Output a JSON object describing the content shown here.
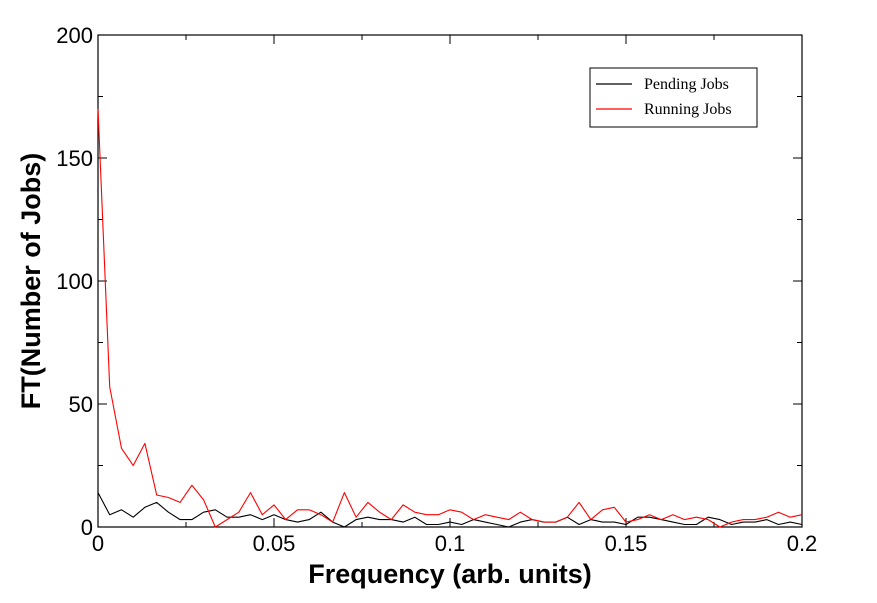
{
  "chart_data": {
    "type": "line",
    "title": "",
    "xlabel": "Frequency (arb. units)",
    "ylabel": "FT(Number of Jobs)",
    "xlim": [
      0,
      0.2
    ],
    "ylim": [
      0,
      200
    ],
    "x_ticks": [
      0,
      0.05,
      0.1,
      0.15,
      0.2
    ],
    "x_tick_labels": [
      "0",
      "0.05",
      "0.1",
      "0.15",
      "0.2"
    ],
    "y_ticks": [
      0,
      50,
      100,
      150,
      200
    ],
    "y_tick_labels": [
      "0",
      "50",
      "100",
      "150",
      "200"
    ],
    "grid": false,
    "legend_position": "top-right",
    "series": [
      {
        "name": "Pending Jobs",
        "color": "#000000",
        "x": [
          0,
          0.00333,
          0.00667,
          0.01,
          0.01333,
          0.01667,
          0.02,
          0.02333,
          0.02667,
          0.03,
          0.03333,
          0.03667,
          0.04,
          0.04333,
          0.04667,
          0.05,
          0.05333,
          0.05667,
          0.06,
          0.06333,
          0.06667,
          0.07,
          0.07333,
          0.07667,
          0.08,
          0.08333,
          0.08667,
          0.09,
          0.09333,
          0.09667,
          0.1,
          0.10333,
          0.10667,
          0.11,
          0.11333,
          0.11667,
          0.12,
          0.12333,
          0.12667,
          0.13,
          0.13333,
          0.13667,
          0.14,
          0.14333,
          0.14667,
          0.15,
          0.15333,
          0.15667,
          0.16,
          0.16333,
          0.16667,
          0.17,
          0.17333,
          0.17667,
          0.18,
          0.18333,
          0.18667,
          0.19,
          0.19333,
          0.19667,
          0.2
        ],
        "y": [
          14,
          5,
          7,
          4,
          8,
          10,
          6,
          3,
          3,
          6,
          7,
          4,
          4,
          5,
          3,
          5,
          3,
          2,
          3,
          6,
          2,
          0,
          3,
          4,
          3,
          3,
          2,
          4,
          1,
          1,
          2,
          1,
          3,
          2,
          1,
          0,
          2,
          3,
          2,
          2,
          4,
          1,
          3,
          2,
          2,
          1,
          4,
          4,
          3,
          2,
          1,
          1,
          4,
          3,
          1,
          2,
          2,
          3,
          1,
          2,
          1
        ]
      },
      {
        "name": "Running Jobs",
        "color": "#ff0000",
        "x": [
          0,
          0.00333,
          0.00667,
          0.01,
          0.01333,
          0.01667,
          0.02,
          0.02333,
          0.02667,
          0.03,
          0.03333,
          0.03667,
          0.04,
          0.04333,
          0.04667,
          0.05,
          0.05333,
          0.05667,
          0.06,
          0.06333,
          0.06667,
          0.07,
          0.07333,
          0.07667,
          0.08,
          0.08333,
          0.08667,
          0.09,
          0.09333,
          0.09667,
          0.1,
          0.10333,
          0.10667,
          0.11,
          0.11333,
          0.11667,
          0.12,
          0.12333,
          0.12667,
          0.13,
          0.13333,
          0.13667,
          0.14,
          0.14333,
          0.14667,
          0.15,
          0.15333,
          0.15667,
          0.16,
          0.16333,
          0.16667,
          0.17,
          0.17333,
          0.17667,
          0.18,
          0.18333,
          0.18667,
          0.19,
          0.19333,
          0.19667,
          0.2
        ],
        "y": [
          170,
          57,
          32,
          25,
          34,
          13,
          12,
          10,
          17,
          11,
          0,
          3,
          6,
          14,
          5,
          9,
          3,
          7,
          7,
          5,
          2,
          14,
          4,
          10,
          6,
          3,
          9,
          6,
          5,
          5,
          7,
          6,
          3,
          5,
          4,
          3,
          6,
          3,
          2,
          2,
          4,
          10,
          3,
          7,
          8,
          2,
          3,
          5,
          3,
          5,
          3,
          4,
          3,
          0,
          2,
          3,
          3,
          4,
          6,
          4,
          5
        ]
      }
    ]
  }
}
